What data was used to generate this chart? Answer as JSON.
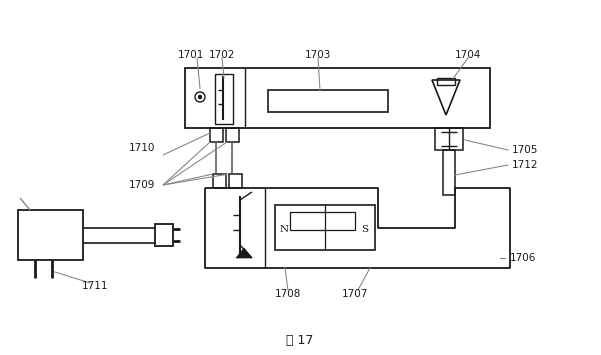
{
  "bg_color": "#ffffff",
  "title": "图 17",
  "lc": "#1a1a1a",
  "gc": "#888888"
}
